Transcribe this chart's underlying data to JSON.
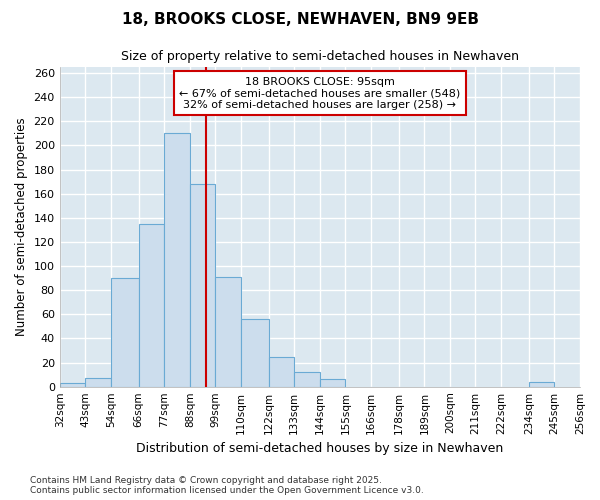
{
  "title": "18, BROOKS CLOSE, NEWHAVEN, BN9 9EB",
  "subtitle": "Size of property relative to semi-detached houses in Newhaven",
  "xlabel": "Distribution of semi-detached houses by size in Newhaven",
  "ylabel": "Number of semi-detached properties",
  "bins": [
    32,
    43,
    54,
    66,
    77,
    88,
    99,
    110,
    122,
    133,
    144,
    155,
    166,
    178,
    189,
    200,
    211,
    222,
    234,
    245,
    256
  ],
  "bar_heights": [
    3,
    7,
    90,
    135,
    210,
    168,
    91,
    56,
    25,
    12,
    6,
    0,
    0,
    0,
    0,
    0,
    0,
    0,
    4,
    0
  ],
  "bar_color": "#ccdded",
  "bar_edge_color": "#6aaad4",
  "vline_x": 95,
  "vline_color": "#cc0000",
  "annotation_title": "18 BROOKS CLOSE: 95sqm",
  "annotation_line1": "← 67% of semi-detached houses are smaller (548)",
  "annotation_line2": "32% of semi-detached houses are larger (258) →",
  "annotation_box_color": "#ffffff",
  "annotation_box_edge": "#cc0000",
  "ylim": [
    0,
    265
  ],
  "yticks": [
    0,
    20,
    40,
    60,
    80,
    100,
    120,
    140,
    160,
    180,
    200,
    220,
    240,
    260
  ],
  "bg_color": "#ffffff",
  "plot_bg_color": "#dce8f0",
  "grid_color": "#ffffff",
  "footer1": "Contains HM Land Registry data © Crown copyright and database right 2025.",
  "footer2": "Contains public sector information licensed under the Open Government Licence v3.0."
}
